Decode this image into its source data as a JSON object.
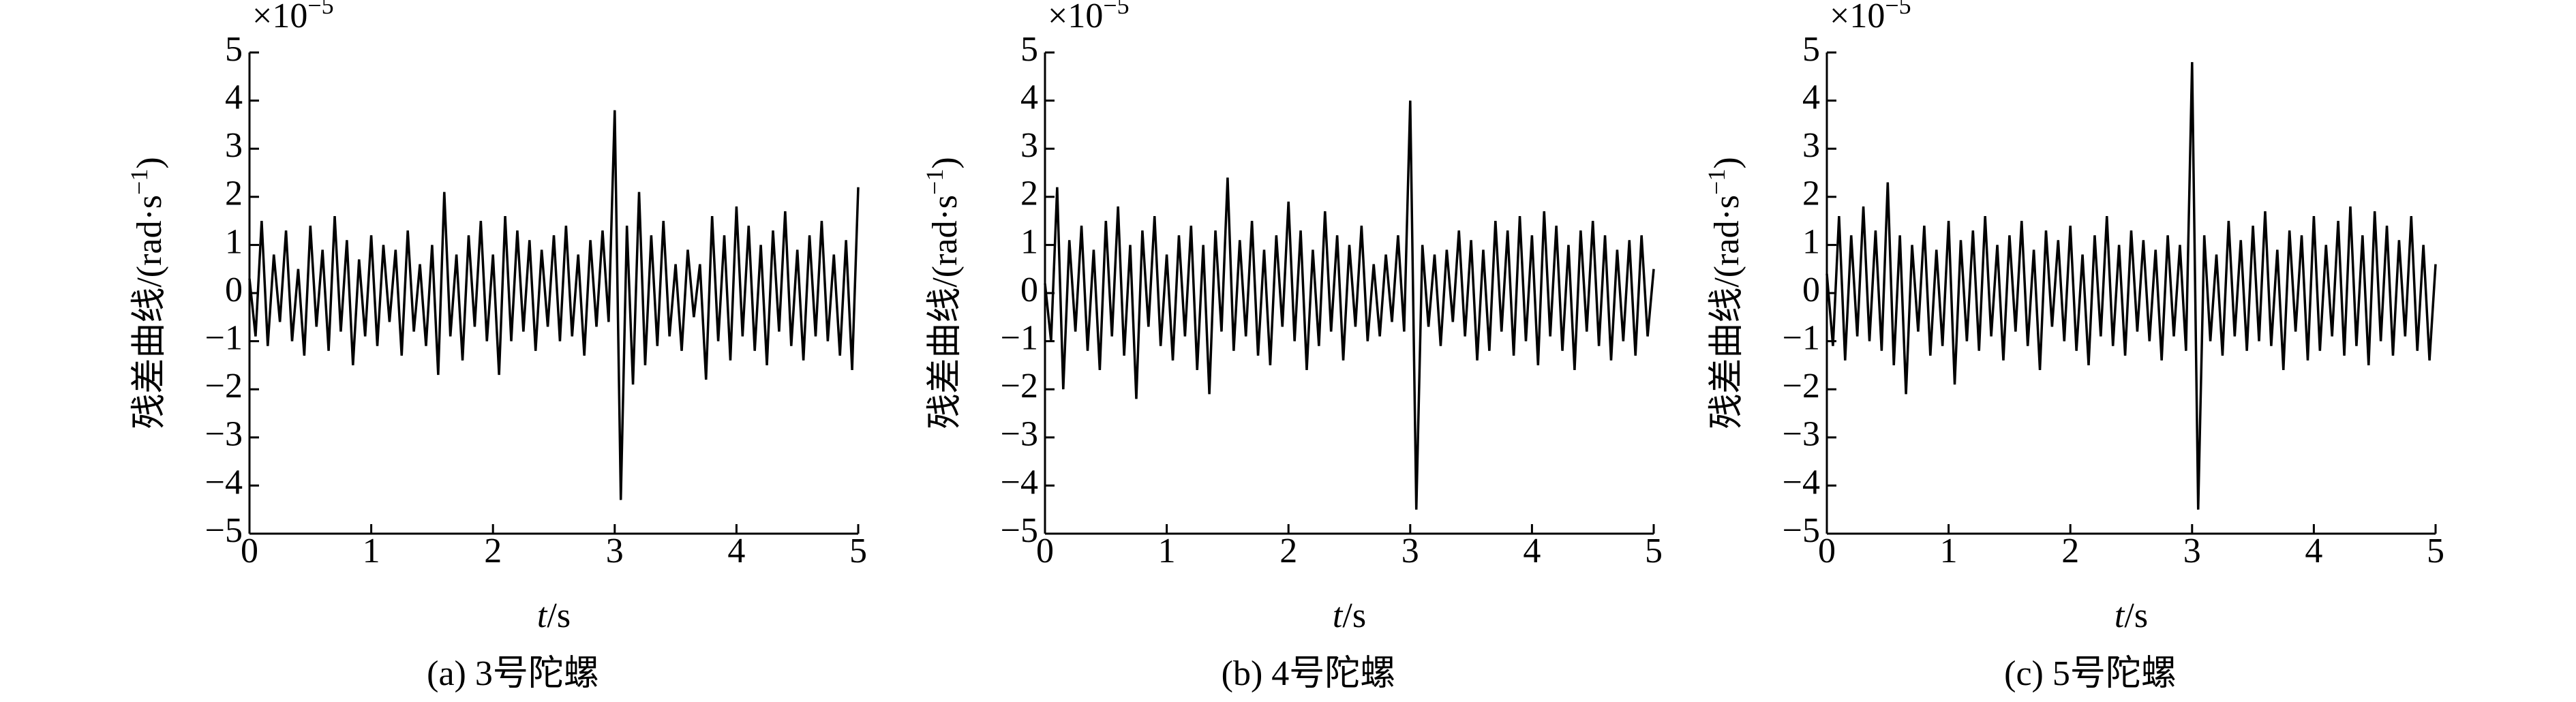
{
  "chart_data": [
    {
      "type": "line",
      "caption": "(a) 3号陀螺",
      "xlabel_var": "t",
      "xlabel_unit": "/s",
      "ylabel": "残差曲线/(rad·s",
      "ylabel_exp": "−1",
      "ylabel_end": ")",
      "y_scale_base": "×10",
      "y_scale_exp": "−5",
      "color": "#000000",
      "xlim": [
        0,
        5
      ],
      "xticks": [
        0,
        1,
        2,
        3,
        4,
        5
      ],
      "ylim": [
        -5,
        5
      ],
      "yticks": [
        {
          "value": -5,
          "label": "−5"
        },
        {
          "value": -4,
          "label": "−4"
        },
        {
          "value": -3,
          "label": "−3"
        },
        {
          "value": -2,
          "label": "−2"
        },
        {
          "value": -1,
          "label": "−1"
        },
        0,
        1,
        2,
        3,
        4,
        5
      ],
      "x": [
        0,
        0.05,
        0.1,
        0.15,
        0.2,
        0.25,
        0.3,
        0.35,
        0.4,
        0.45,
        0.5,
        0.55,
        0.6,
        0.65,
        0.7,
        0.75,
        0.8,
        0.85,
        0.9,
        0.95,
        1,
        1.05,
        1.1,
        1.15,
        1.2,
        1.25,
        1.3,
        1.35,
        1.4,
        1.45,
        1.5,
        1.55,
        1.6,
        1.65,
        1.7,
        1.75,
        1.8,
        1.85,
        1.9,
        1.95,
        2,
        2.05,
        2.1,
        2.15,
        2.2,
        2.25,
        2.3,
        2.35,
        2.4,
        2.45,
        2.5,
        2.55,
        2.6,
        2.65,
        2.7,
        2.75,
        2.8,
        2.85,
        2.9,
        2.95,
        3,
        3.05,
        3.1,
        3.15,
        3.2,
        3.25,
        3.3,
        3.35,
        3.4,
        3.45,
        3.5,
        3.55,
        3.6,
        3.65,
        3.7,
        3.75,
        3.8,
        3.85,
        3.9,
        3.95,
        4,
        4.05,
        4.1,
        4.15,
        4.2,
        4.25,
        4.3,
        4.35,
        4.4,
        4.45,
        4.5,
        4.55,
        4.6,
        4.65,
        4.7,
        4.75,
        4.8,
        4.85,
        4.9,
        4.95,
        5
      ],
      "values": [
        0.3,
        -0.9,
        1.5,
        -1.1,
        0.8,
        -0.6,
        1.3,
        -1.0,
        0.5,
        -1.3,
        1.4,
        -0.7,
        0.9,
        -1.2,
        1.6,
        -0.8,
        1.1,
        -1.5,
        0.7,
        -0.9,
        1.2,
        -1.1,
        1.0,
        -0.6,
        0.9,
        -1.3,
        1.3,
        -0.8,
        0.6,
        -1.1,
        1.0,
        -1.7,
        2.1,
        -0.9,
        0.8,
        -1.4,
        1.2,
        -0.7,
        1.5,
        -1.0,
        0.8,
        -1.7,
        1.6,
        -1.0,
        1.3,
        -0.8,
        1.1,
        -1.2,
        0.9,
        -0.7,
        1.2,
        -1.0,
        1.4,
        -0.9,
        0.8,
        -1.3,
        1.1,
        -0.7,
        1.3,
        -0.6,
        3.8,
        -4.3,
        1.4,
        -1.9,
        2.1,
        -1.5,
        1.2,
        -1.1,
        1.5,
        -0.9,
        0.6,
        -1.2,
        0.9,
        -0.5,
        0.6,
        -1.8,
        1.6,
        -1.0,
        1.2,
        -1.4,
        1.8,
        -0.9,
        1.4,
        -1.2,
        1.0,
        -1.5,
        1.3,
        -0.8,
        1.7,
        -1.1,
        0.9,
        -1.4,
        1.2,
        -0.9,
        1.5,
        -1.0,
        0.8,
        -1.3,
        1.1,
        -1.6,
        2.2
      ]
    },
    {
      "type": "line",
      "caption": "(b) 4号陀螺",
      "xlabel_var": "t",
      "xlabel_unit": "/s",
      "ylabel": "残差曲线/(rad·s",
      "ylabel_exp": "−1",
      "ylabel_end": ")",
      "y_scale_base": "×10",
      "y_scale_exp": "−5",
      "color": "#000000",
      "xlim": [
        0,
        5
      ],
      "xticks": [
        0,
        1,
        2,
        3,
        4,
        5
      ],
      "ylim": [
        -5,
        5
      ],
      "yticks": [
        {
          "value": -5,
          "label": "−5"
        },
        {
          "value": -4,
          "label": "−4"
        },
        {
          "value": -3,
          "label": "−3"
        },
        {
          "value": -2,
          "label": "−2"
        },
        {
          "value": -1,
          "label": "−1"
        },
        0,
        1,
        2,
        3,
        4,
        5
      ],
      "x": [
        0,
        0.05,
        0.1,
        0.15,
        0.2,
        0.25,
        0.3,
        0.35,
        0.4,
        0.45,
        0.5,
        0.55,
        0.6,
        0.65,
        0.7,
        0.75,
        0.8,
        0.85,
        0.9,
        0.95,
        1,
        1.05,
        1.1,
        1.15,
        1.2,
        1.25,
        1.3,
        1.35,
        1.4,
        1.45,
        1.5,
        1.55,
        1.6,
        1.65,
        1.7,
        1.75,
        1.8,
        1.85,
        1.9,
        1.95,
        2,
        2.05,
        2.1,
        2.15,
        2.2,
        2.25,
        2.3,
        2.35,
        2.4,
        2.45,
        2.5,
        2.55,
        2.6,
        2.65,
        2.7,
        2.75,
        2.8,
        2.85,
        2.9,
        2.95,
        3,
        3.05,
        3.1,
        3.15,
        3.2,
        3.25,
        3.3,
        3.35,
        3.4,
        3.45,
        3.5,
        3.55,
        3.6,
        3.65,
        3.7,
        3.75,
        3.8,
        3.85,
        3.9,
        3.95,
        4,
        4.05,
        4.1,
        4.15,
        4.2,
        4.25,
        4.3,
        4.35,
        4.4,
        4.45,
        4.5,
        4.55,
        4.6,
        4.65,
        4.7,
        4.75,
        4.8,
        4.85,
        4.9,
        4.95,
        5
      ],
      "values": [
        0.2,
        -1.0,
        2.2,
        -2.0,
        1.1,
        -0.8,
        1.4,
        -1.2,
        0.9,
        -1.6,
        1.5,
        -0.9,
        1.8,
        -1.3,
        1.0,
        -2.2,
        1.3,
        -0.7,
        1.6,
        -1.1,
        0.8,
        -1.4,
        1.2,
        -0.9,
        1.4,
        -1.6,
        1.0,
        -2.1,
        1.3,
        -0.8,
        2.4,
        -1.2,
        1.1,
        -0.9,
        1.5,
        -1.3,
        0.9,
        -1.5,
        1.2,
        -0.7,
        1.9,
        -1.0,
        1.3,
        -1.6,
        0.9,
        -1.1,
        1.7,
        -0.8,
        1.2,
        -1.4,
        1.0,
        -0.7,
        1.4,
        -1.0,
        0.6,
        -0.9,
        0.8,
        -0.6,
        1.2,
        -0.8,
        4.0,
        -4.5,
        1.0,
        -0.7,
        0.8,
        -1.1,
        0.9,
        -0.6,
        1.3,
        -0.9,
        1.1,
        -1.4,
        0.9,
        -1.2,
        1.5,
        -0.8,
        1.3,
        -1.3,
        1.6,
        -1.0,
        1.2,
        -1.5,
        1.7,
        -0.9,
        1.4,
        -1.2,
        1.0,
        -1.6,
        1.3,
        -0.8,
        1.5,
        -1.1,
        1.2,
        -1.4,
        0.9,
        -1.0,
        1.1,
        -1.3,
        1.2,
        -0.9,
        0.5
      ]
    },
    {
      "type": "line",
      "caption": "(c) 5号陀螺",
      "xlabel_var": "t",
      "xlabel_unit": "/s",
      "ylabel": "残差曲线/(rad·s",
      "ylabel_exp": "−1",
      "ylabel_end": ")",
      "y_scale_base": "×10",
      "y_scale_exp": "−5",
      "color": "#000000",
      "xlim": [
        0,
        5
      ],
      "xticks": [
        0,
        1,
        2,
        3,
        4,
        5
      ],
      "ylim": [
        -5,
        5
      ],
      "yticks": [
        {
          "value": -5,
          "label": "−5"
        },
        {
          "value": -4,
          "label": "−4"
        },
        {
          "value": -3,
          "label": "−3"
        },
        {
          "value": -2,
          "label": "−2"
        },
        {
          "value": -1,
          "label": "−1"
        },
        0,
        1,
        2,
        3,
        4,
        5
      ],
      "x": [
        0,
        0.05,
        0.1,
        0.15,
        0.2,
        0.25,
        0.3,
        0.35,
        0.4,
        0.45,
        0.5,
        0.55,
        0.6,
        0.65,
        0.7,
        0.75,
        0.8,
        0.85,
        0.9,
        0.95,
        1,
        1.05,
        1.1,
        1.15,
        1.2,
        1.25,
        1.3,
        1.35,
        1.4,
        1.45,
        1.5,
        1.55,
        1.6,
        1.65,
        1.7,
        1.75,
        1.8,
        1.85,
        1.9,
        1.95,
        2,
        2.05,
        2.1,
        2.15,
        2.2,
        2.25,
        2.3,
        2.35,
        2.4,
        2.45,
        2.5,
        2.55,
        2.6,
        2.65,
        2.7,
        2.75,
        2.8,
        2.85,
        2.9,
        2.95,
        3,
        3.05,
        3.1,
        3.15,
        3.2,
        3.25,
        3.3,
        3.35,
        3.4,
        3.45,
        3.5,
        3.55,
        3.6,
        3.65,
        3.7,
        3.75,
        3.8,
        3.85,
        3.9,
        3.95,
        4,
        4.05,
        4.1,
        4.15,
        4.2,
        4.25,
        4.3,
        4.35,
        4.4,
        4.45,
        4.5,
        4.55,
        4.6,
        4.65,
        4.7,
        4.75,
        4.8,
        4.85,
        4.9,
        4.95,
        5
      ],
      "values": [
        0.4,
        -1.1,
        1.6,
        -1.4,
        1.2,
        -0.9,
        1.8,
        -1.0,
        1.3,
        -1.2,
        2.3,
        -1.5,
        1.2,
        -2.1,
        1.0,
        -0.8,
        1.4,
        -1.3,
        0.9,
        -1.1,
        1.5,
        -1.9,
        1.1,
        -1.0,
        1.3,
        -1.2,
        1.6,
        -0.9,
        1.0,
        -1.4,
        1.2,
        -0.8,
        1.5,
        -1.1,
        0.9,
        -1.6,
        1.3,
        -0.7,
        1.1,
        -1.0,
        1.4,
        -1.2,
        0.8,
        -1.5,
        1.2,
        -0.9,
        1.6,
        -1.1,
        1.0,
        -1.3,
        1.3,
        -0.8,
        1.1,
        -1.0,
        0.9,
        -1.4,
        1.2,
        -0.9,
        1.0,
        -1.2,
        4.8,
        -4.5,
        1.2,
        -1.0,
        0.8,
        -1.3,
        1.5,
        -0.9,
        1.1,
        -1.2,
        1.4,
        -1.0,
        1.7,
        -1.1,
        0.9,
        -1.6,
        1.3,
        -0.8,
        1.2,
        -1.4,
        1.6,
        -1.2,
        1.0,
        -0.9,
        1.5,
        -1.3,
        1.8,
        -1.1,
        1.2,
        -1.5,
        1.7,
        -1.0,
        1.4,
        -1.3,
        1.1,
        -0.9,
        1.6,
        -1.2,
        1.0,
        -1.4,
        0.6
      ]
    }
  ]
}
